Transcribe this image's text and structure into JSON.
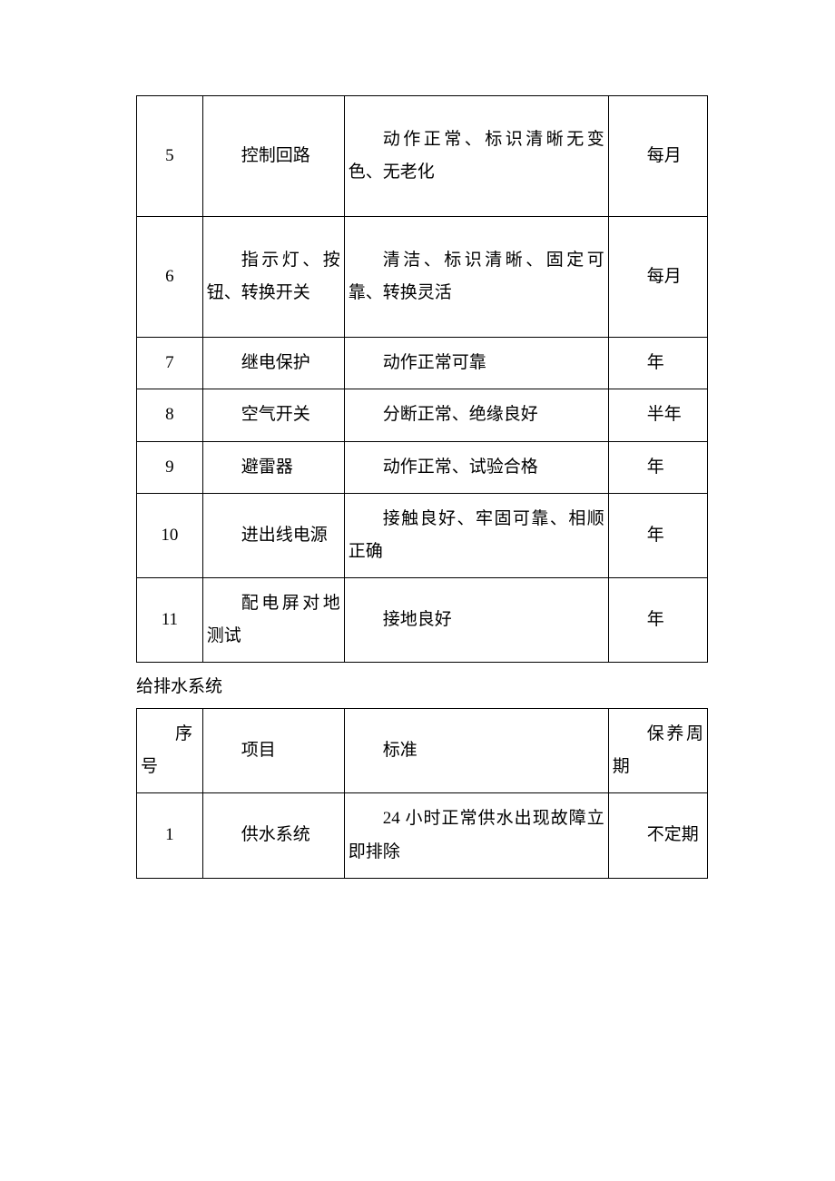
{
  "table1": {
    "rows": [
      {
        "num": "5",
        "item": "控制回路",
        "std": "动作正常、标识清晰无变色、无老化",
        "cycle": "每月"
      },
      {
        "num": "6",
        "item": "指示灯、按钮、转换开关",
        "std": "清洁、标识清晰、固定可靠、转换灵活",
        "cycle": "每月"
      },
      {
        "num": "7",
        "item": "继电保护",
        "std": "动作正常可靠",
        "cycle": "年"
      },
      {
        "num": "8",
        "item": "空气开关",
        "std": "分断正常、绝缘良好",
        "cycle": "半年"
      },
      {
        "num": "9",
        "item": "避雷器",
        "std": "动作正常、试验合格",
        "cycle": "年"
      },
      {
        "num": "10",
        "item": "进出线电源",
        "std": "接触良好、牢固可靠、相顺正确",
        "cycle": "年"
      },
      {
        "num": "11",
        "item": "配电屏对地测试",
        "std": "接地良好",
        "cycle": "年"
      }
    ]
  },
  "section_title": "给排水系统",
  "table2": {
    "header": {
      "num": "序号",
      "item": "项目",
      "std": "标准",
      "cycle": "保养周期"
    },
    "rows": [
      {
        "num": "1",
        "item": "供水系统",
        "std": "24 小时正常供水出现故障立即排除",
        "cycle": "不定期"
      }
    ]
  },
  "colors": {
    "text": "#000000",
    "border": "#000000",
    "background": "#ffffff"
  },
  "font_size_pt": 14
}
